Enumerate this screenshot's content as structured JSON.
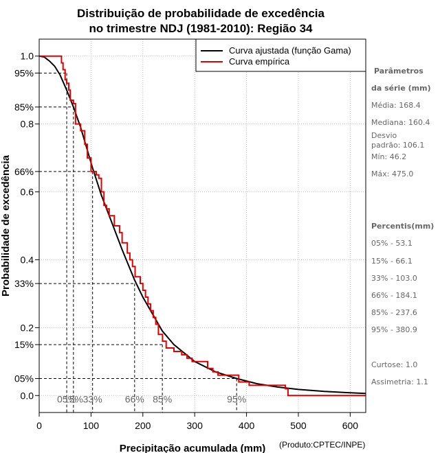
{
  "chart_data": {
    "type": "line",
    "title_line1": "Distribuição de probabilidade de excedência",
    "title_line2": "no trimestre NDJ (1981-2010): Região 34",
    "xlabel": "Precipitação acumulada (mm)",
    "ylabel": "Probabilidade de excedência",
    "credit": "(Produto:CPTEC/INPE)",
    "xlim": [
      0,
      630
    ],
    "ylim": [
      -0.05,
      1.05
    ],
    "x_ticks": [
      "0",
      "100",
      "200",
      "300",
      "400",
      "500",
      "600"
    ],
    "x_tick_values": [
      0,
      100,
      200,
      300,
      400,
      500,
      600
    ],
    "y_ticks": [
      {
        "value": 1.0,
        "label": "1.0"
      },
      {
        "value": 0.95,
        "label": "95%"
      },
      {
        "value": 0.85,
        "label": "85%"
      },
      {
        "value": 0.8,
        "label": "0.8"
      },
      {
        "value": 0.66,
        "label": "66%"
      },
      {
        "value": 0.6,
        "label": "0.6"
      },
      {
        "value": 0.4,
        "label": "0.4"
      },
      {
        "value": 0.33,
        "label": "33%"
      },
      {
        "value": 0.2,
        "label": "0.2"
      },
      {
        "value": 0.15,
        "label": "15%"
      },
      {
        "value": 0.05,
        "label": "05%"
      },
      {
        "value": 0.0,
        "label": "0.0"
      }
    ],
    "legend": {
      "position": "top-right",
      "fitted_label": "Curva ajustada (função Gama)",
      "empirical_label": "Curva empírica"
    },
    "colors": {
      "fitted": "#000000",
      "empirical": "#e00000",
      "grid": "#bbbbbb",
      "percentile_text": "#666666"
    },
    "series": [
      {
        "name": "Curva ajustada (função Gama)",
        "x": [
          0,
          10,
          20,
          30,
          40,
          53.1,
          66.1,
          80,
          103,
          120,
          140,
          160,
          184.1,
          200,
          237.6,
          260,
          300,
          340,
          380.9,
          420,
          460,
          500,
          550,
          600,
          630
        ],
        "y": [
          1.0,
          0.997,
          0.985,
          0.97,
          0.945,
          0.9,
          0.85,
          0.79,
          0.67,
          0.59,
          0.51,
          0.43,
          0.34,
          0.29,
          0.19,
          0.15,
          0.1,
          0.07,
          0.05,
          0.035,
          0.025,
          0.018,
          0.012,
          0.008,
          0.006
        ]
      },
      {
        "name": "Curva empírica",
        "step_x": [
          0,
          43,
          46,
          50,
          53,
          57,
          60,
          66,
          70,
          80,
          88,
          93,
          100,
          105,
          110,
          115,
          120,
          125,
          130,
          135,
          145,
          155,
          160,
          170,
          175,
          180,
          185,
          195,
          200,
          205,
          210,
          215,
          220,
          225,
          230,
          238,
          245,
          260,
          275,
          285,
          295,
          310,
          315,
          325,
          335,
          345,
          350,
          360,
          375,
          385,
          395,
          405,
          415,
          430,
          475,
          480,
          630
        ],
        "step_y": [
          1.0,
          0.98,
          0.96,
          0.93,
          0.92,
          0.9,
          0.87,
          0.86,
          0.8,
          0.78,
          0.74,
          0.7,
          0.66,
          0.66,
          0.65,
          0.64,
          0.6,
          0.56,
          0.55,
          0.53,
          0.5,
          0.48,
          0.45,
          0.42,
          0.4,
          0.38,
          0.35,
          0.33,
          0.31,
          0.29,
          0.27,
          0.25,
          0.23,
          0.21,
          0.18,
          0.16,
          0.14,
          0.13,
          0.12,
          0.11,
          0.1,
          0.1,
          0.1,
          0.08,
          0.07,
          0.06,
          0.06,
          0.06,
          0.06,
          0.04,
          0.04,
          0.03,
          0.03,
          0.03,
          0.02,
          0.0,
          0.0
        ]
      }
    ],
    "percentile_lines": [
      {
        "label": "05%",
        "x": 53.1,
        "p": 0.95
      },
      {
        "label": "15%",
        "x": 66.1,
        "p": 0.85
      },
      {
        "label": "33%",
        "x": 103.0,
        "p": 0.66
      },
      {
        "label": "66%",
        "x": 184.1,
        "p": 0.33
      },
      {
        "label": "85%",
        "x": 237.6,
        "p": 0.15
      },
      {
        "label": "95%",
        "x": 380.9,
        "p": 0.05
      }
    ]
  },
  "side_panel": {
    "params_heading_1": "Parâmetros",
    "params_heading_2": "da série (mm)",
    "media": "Média: 168.4",
    "mediana": "Mediana: 160.4",
    "desvio_1": "Desvio",
    "desvio_2": "padrão: 106.1",
    "min": "Mín: 46.2",
    "max": "Máx: 475.0",
    "percentis_heading": "Percentis(mm)",
    "p05": "05% - 53.1",
    "p15": "15% - 66.1",
    "p33": "33% - 103.0",
    "p66": "66% - 184.1",
    "p85": "85% - 237.6",
    "p95": "95% - 380.9",
    "curtose": "Curtose: 1.0",
    "assimetria": "Assimetria: 1.1"
  }
}
